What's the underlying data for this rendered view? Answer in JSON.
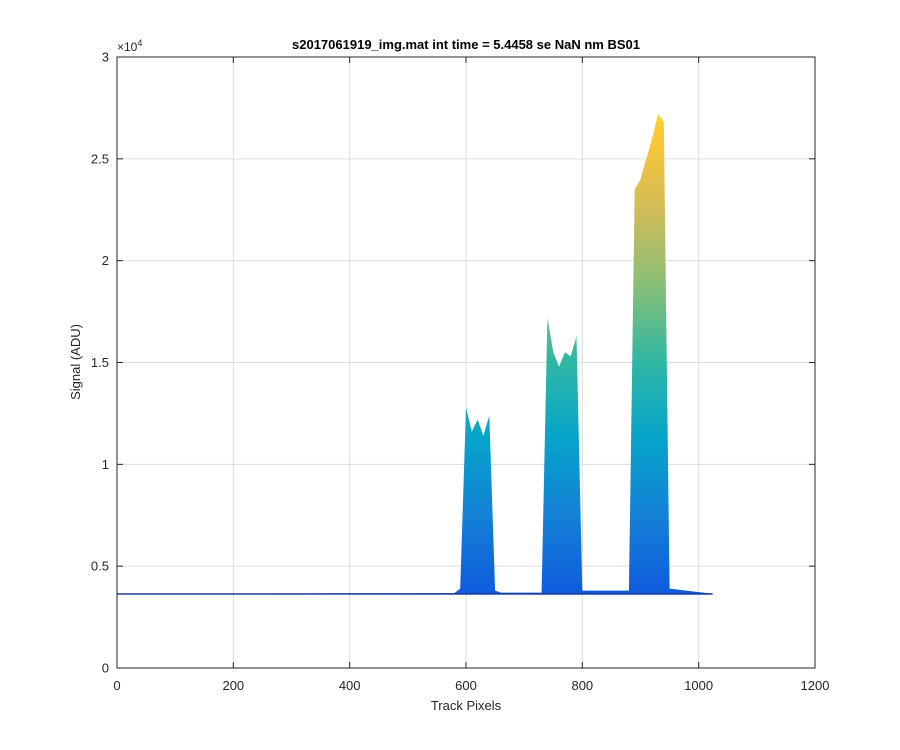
{
  "chart_data": {
    "type": "area",
    "title": "s2017061919_img.mat int time = 5.4458 se  NaN nm BS01",
    "xlabel": "Track Pixels",
    "ylabel": "Signal (ADU)",
    "y_exponent_label": "×10",
    "y_exponent_power": "4",
    "xlim": [
      0,
      1200
    ],
    "ylim": [
      0,
      30000
    ],
    "x_ticks": [
      0,
      200,
      400,
      600,
      800,
      1000,
      1200
    ],
    "x_tick_labels": [
      "0",
      "200",
      "400",
      "600",
      "800",
      "1000",
      "1200"
    ],
    "y_ticks": [
      0,
      5000,
      10000,
      15000,
      20000,
      25000,
      30000
    ],
    "y_tick_labels": [
      "0",
      "0.5",
      "1",
      "1.5",
      "2",
      "2.5",
      "3"
    ],
    "grid": true,
    "baseline": 3650,
    "series_x": [
      0,
      580,
      590,
      600,
      610,
      620,
      630,
      640,
      650,
      660,
      730,
      740,
      750,
      760,
      770,
      780,
      790,
      800,
      880,
      890,
      900,
      910,
      920,
      930,
      940,
      950,
      1024
    ],
    "series_y": [
      3650,
      3680,
      3900,
      12800,
      11600,
      12200,
      11400,
      12400,
      3800,
      3700,
      3700,
      17200,
      15500,
      14800,
      15500,
      15300,
      16300,
      3800,
      3800,
      23500,
      24000,
      25000,
      26000,
      27200,
      26800,
      3900,
      3650
    ],
    "colormap": [
      "#352a87",
      "#0f5cdd",
      "#1481d6",
      "#06a4ca",
      "#2eb7a4",
      "#87bf77",
      "#d1bb59",
      "#fec832",
      "#f9fb0e"
    ]
  }
}
